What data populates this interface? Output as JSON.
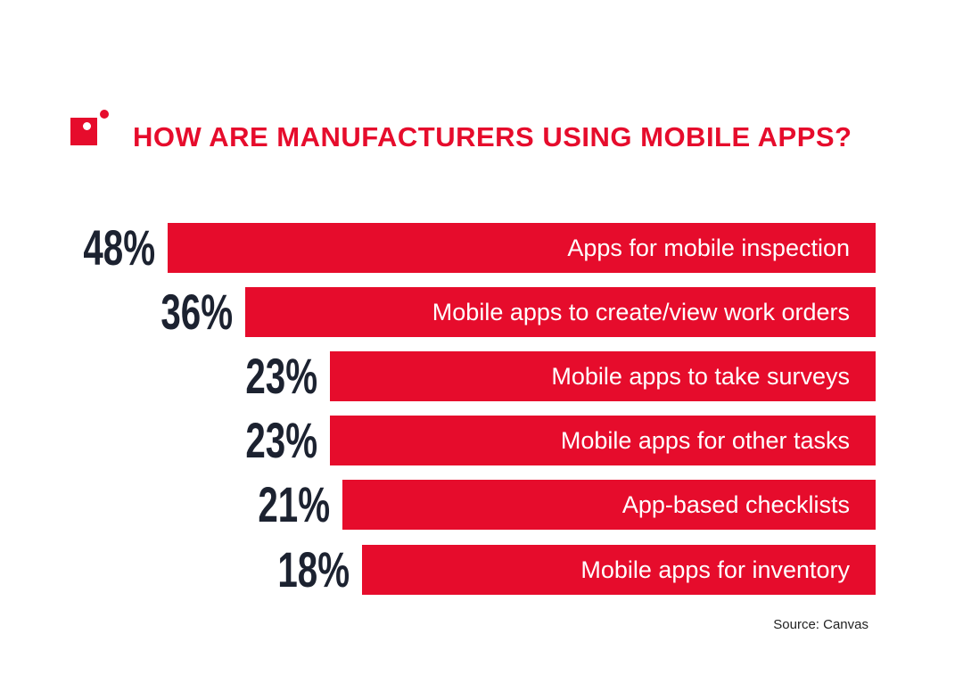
{
  "colors": {
    "bar": "#e60c2c",
    "title": "#e60c2c",
    "value_text": "#1c2230"
  },
  "chart_data": {
    "type": "bar",
    "orientation": "horizontal",
    "title": "HOW ARE MANUFACTURERS USING MOBILE APPS?",
    "categories": [
      "Apps for mobile inspection",
      "Mobile apps to create/view work orders",
      "Mobile apps to take surveys",
      "Mobile apps for other tasks",
      "App-based checklists",
      "Mobile apps for inventory"
    ],
    "values": [
      48,
      36,
      23,
      23,
      21,
      18
    ],
    "data_labels": [
      "48%",
      "36%",
      "23%",
      "23%",
      "21%",
      "18%"
    ],
    "grid": false,
    "source": "Source: Canvas"
  }
}
